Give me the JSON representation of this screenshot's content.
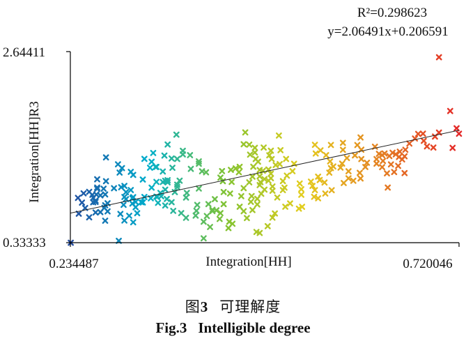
{
  "chart_data": {
    "type": "scatter",
    "title": "",
    "xlabel": "Integration[HH]",
    "ylabel": "Integration[HH]R3",
    "xlim": [
      0.234487,
      0.720046
    ],
    "ylim": [
      0.33333,
      2.64411
    ],
    "x_tick_labels": [
      "0.234487",
      "0.720046"
    ],
    "y_tick_labels": [
      "2.64411",
      "0.33333"
    ],
    "marker": "x",
    "color_scale": "x-value gradient (blue → cyan → green → yellow → orange → red)",
    "trendline": {
      "slope": 2.06491,
      "intercept": 0.206591,
      "r_squared": 0.298623,
      "equation_label": "y=2.06491x+0.206591",
      "r2_label": "R²=0.298623"
    },
    "points": [
      [
        0.235,
        0.333
      ],
      [
        0.245,
        0.684
      ],
      [
        0.266,
        0.699
      ],
      [
        0.266,
        0.842
      ],
      [
        0.267,
        0.916
      ],
      [
        0.268,
        1.1
      ],
      [
        0.276,
        0.986
      ],
      [
        0.277,
        0.755
      ],
      [
        0.278,
        0.917
      ],
      [
        0.278,
        0.599
      ],
      [
        0.279,
        1.077
      ],
      [
        0.281,
        0.81
      ],
      [
        0.289,
        0.992
      ],
      [
        0.298,
        1.004
      ],
      [
        0.296,
        1.181
      ],
      [
        0.302,
        1.02
      ],
      [
        0.302,
        0.886
      ],
      [
        0.301,
        0.791
      ],
      [
        0.304,
        0.86
      ],
      [
        0.31,
        0.97
      ],
      [
        0.312,
        0.871
      ],
      [
        0.313,
        1.153
      ],
      [
        0.325,
        0.82
      ],
      [
        0.31,
        1.19
      ],
      [
        0.316,
        0.826
      ],
      [
        0.318,
        0.69
      ],
      [
        0.313,
        0.58
      ],
      [
        0.302,
        0.601
      ],
      [
        0.308,
        0.659
      ],
      [
        0.316,
        0.762
      ],
      [
        0.304,
        0.945
      ],
      [
        0.299,
        1.235
      ],
      [
        0.294,
        1.281
      ],
      [
        0.279,
        1.365
      ],
      [
        0.272,
        0.703
      ],
      [
        0.281,
        0.712
      ],
      [
        0.272,
        0.905
      ],
      [
        0.268,
        0.985
      ],
      [
        0.251,
        0.93
      ],
      [
        0.263,
        0.822
      ],
      [
        0.263,
        0.876
      ],
      [
        0.268,
        1.0
      ],
      [
        0.249,
        0.818
      ],
      [
        0.253,
        0.753
      ],
      [
        0.258,
        0.64
      ],
      [
        0.244,
        0.875
      ],
      [
        0.258,
        0.948
      ],
      [
        0.262,
        0.912
      ],
      [
        0.266,
        0.826
      ],
      [
        0.278,
        0.786
      ],
      [
        0.295,
        0.356
      ],
      [
        0.297,
        0.681
      ],
      [
        0.312,
        0.806
      ],
      [
        0.313,
        0.884
      ],
      [
        0.323,
        0.823
      ],
      [
        0.327,
        0.886
      ],
      [
        0.335,
        0.87
      ],
      [
        0.336,
        0.999
      ],
      [
        0.342,
        1.068
      ],
      [
        0.342,
        0.89
      ],
      [
        0.325,
        1.097
      ],
      [
        0.334,
        1.24
      ],
      [
        0.35,
        1.194
      ],
      [
        0.327,
        1.347
      ],
      [
        0.338,
        1.418
      ],
      [
        0.341,
        1.249
      ],
      [
        0.362,
        1.239
      ],
      [
        0.356,
        1.089
      ],
      [
        0.35,
        1.067
      ],
      [
        0.342,
        1.25
      ],
      [
        0.336,
        1.312
      ],
      [
        0.352,
        1.387
      ],
      [
        0.361,
        1.352
      ],
      [
        0.368,
        1.346
      ],
      [
        0.356,
        1.521
      ],
      [
        0.367,
        1.64
      ],
      [
        0.375,
        1.445
      ],
      [
        0.375,
        1.401
      ],
      [
        0.384,
        1.392
      ],
      [
        0.395,
        1.317
      ],
      [
        0.395,
        1.288
      ],
      [
        0.385,
        1.226
      ],
      [
        0.399,
        1.197
      ],
      [
        0.404,
        1.184
      ],
      [
        0.395,
        0.988
      ],
      [
        0.379,
        0.879
      ],
      [
        0.38,
        0.935
      ],
      [
        0.368,
        1.035
      ],
      [
        0.371,
        1.083
      ],
      [
        0.368,
        1.005
      ],
      [
        0.365,
        0.945
      ],
      [
        0.361,
        0.823
      ],
      [
        0.355,
        0.862
      ],
      [
        0.343,
        0.887
      ],
      [
        0.347,
        0.935
      ],
      [
        0.353,
        0.975
      ],
      [
        0.356,
        1.063
      ],
      [
        0.353,
        1.082
      ],
      [
        0.348,
        0.895
      ],
      [
        0.353,
        0.783
      ],
      [
        0.344,
        0.815
      ],
      [
        0.363,
        0.718
      ],
      [
        0.373,
        0.691
      ],
      [
        0.379,
        0.634
      ],
      [
        0.391,
        0.661
      ],
      [
        0.392,
        0.719
      ],
      [
        0.393,
        0.79
      ],
      [
        0.407,
        0.8
      ],
      [
        0.412,
        0.731
      ],
      [
        0.415,
        0.86
      ],
      [
        0.426,
        0.946
      ],
      [
        0.425,
        1.077
      ],
      [
        0.422,
        1.12
      ],
      [
        0.424,
        1.199
      ],
      [
        0.435,
        1.214
      ],
      [
        0.441,
        1.232
      ],
      [
        0.446,
        1.251
      ],
      [
        0.445,
        1.185
      ],
      [
        0.436,
        1.068
      ],
      [
        0.434,
        0.928
      ],
      [
        0.426,
        0.8
      ],
      [
        0.417,
        0.725
      ],
      [
        0.422,
        0.691
      ],
      [
        0.433,
        0.587
      ],
      [
        0.437,
        0.562
      ],
      [
        0.432,
        0.51
      ],
      [
        0.421,
        0.62
      ],
      [
        0.409,
        0.523
      ],
      [
        0.401,
        0.386
      ],
      [
        0.401,
        0.587
      ],
      [
        0.405,
        0.656
      ],
      [
        0.412,
        0.715
      ],
      [
        0.451,
        0.714
      ],
      [
        0.446,
        0.768
      ],
      [
        0.448,
        0.896
      ],
      [
        0.451,
        0.993
      ],
      [
        0.458,
        1.063
      ],
      [
        0.462,
        1.132
      ],
      [
        0.471,
        1.136
      ],
      [
        0.475,
        1.203
      ],
      [
        0.477,
        1.102
      ],
      [
        0.471,
        1.03
      ],
      [
        0.472,
        1.065
      ],
      [
        0.485,
        1.113
      ],
      [
        0.485,
        1.168
      ],
      [
        0.471,
        1.212
      ],
      [
        0.463,
        1.252
      ],
      [
        0.469,
        1.313
      ],
      [
        0.482,
        1.218
      ],
      [
        0.491,
        1.272
      ],
      [
        0.486,
        1.345
      ],
      [
        0.466,
        1.345
      ],
      [
        0.459,
        1.398
      ],
      [
        0.465,
        1.481
      ],
      [
        0.476,
        1.484
      ],
      [
        0.485,
        1.446
      ],
      [
        0.483,
        1.39
      ],
      [
        0.465,
        1.424
      ],
      [
        0.458,
        1.519
      ],
      [
        0.451,
        1.524
      ],
      [
        0.453,
        1.667
      ],
      [
        0.495,
        1.629
      ],
      [
        0.497,
        1.452
      ],
      [
        0.504,
        1.346
      ],
      [
        0.496,
        1.284
      ],
      [
        0.514,
        1.288
      ],
      [
        0.512,
        1.198
      ],
      [
        0.505,
        1.144
      ],
      [
        0.5,
        1.078
      ],
      [
        0.502,
        0.999
      ],
      [
        0.5,
        0.969
      ],
      [
        0.493,
        0.88
      ],
      [
        0.487,
        0.961
      ],
      [
        0.487,
        1.013
      ],
      [
        0.482,
        1.083
      ],
      [
        0.477,
        0.975
      ],
      [
        0.473,
        0.925
      ],
      [
        0.468,
        0.864
      ],
      [
        0.461,
        0.897
      ],
      [
        0.46,
        0.827
      ],
      [
        0.468,
        0.796
      ],
      [
        0.462,
        0.728
      ],
      [
        0.455,
        0.631
      ],
      [
        0.467,
        0.463
      ],
      [
        0.471,
        0.451
      ],
      [
        0.481,
        0.533
      ],
      [
        0.487,
        0.636
      ],
      [
        0.49,
        0.687
      ],
      [
        0.503,
        0.768
      ],
      [
        0.509,
        0.808
      ],
      [
        0.52,
        0.745
      ],
      [
        0.524,
        0.767
      ],
      [
        0.523,
        0.913
      ],
      [
        0.523,
        0.98
      ],
      [
        0.521,
        1.049
      ],
      [
        0.535,
        1.072
      ],
      [
        0.537,
        1.02
      ],
      [
        0.54,
        0.969
      ],
      [
        0.539,
        0.888
      ],
      [
        0.544,
        0.87
      ],
      [
        0.553,
        0.928
      ],
      [
        0.561,
        0.968
      ],
      [
        0.552,
        1.061
      ],
      [
        0.546,
        1.091
      ],
      [
        0.544,
        1.132
      ],
      [
        0.558,
        1.18
      ],
      [
        0.56,
        1.235
      ],
      [
        0.563,
        1.255
      ],
      [
        0.559,
        1.317
      ],
      [
        0.554,
        1.392
      ],
      [
        0.547,
        1.45
      ],
      [
        0.54,
        1.517
      ],
      [
        0.541,
        1.412
      ],
      [
        0.56,
        1.515
      ],
      [
        0.575,
        1.541
      ],
      [
        0.575,
        1.456
      ],
      [
        0.58,
        1.357
      ],
      [
        0.574,
        1.29
      ],
      [
        0.572,
        1.241
      ],
      [
        0.582,
        1.197
      ],
      [
        0.582,
        1.112
      ],
      [
        0.576,
        1.055
      ],
      [
        0.588,
        1.082
      ],
      [
        0.597,
        1.11
      ],
      [
        0.596,
        1.178
      ],
      [
        0.603,
        1.249
      ],
      [
        0.605,
        1.3
      ],
      [
        0.598,
        1.345
      ],
      [
        0.59,
        1.389
      ],
      [
        0.598,
        1.458
      ],
      [
        0.593,
        1.514
      ],
      [
        0.597,
        1.606
      ],
      [
        0.615,
        1.494
      ],
      [
        0.62,
        1.408
      ],
      [
        0.617,
        1.344
      ],
      [
        0.624,
        1.392
      ],
      [
        0.627,
        1.412
      ],
      [
        0.633,
        1.381
      ],
      [
        0.637,
        1.421
      ],
      [
        0.641,
        1.402
      ],
      [
        0.646,
        1.434
      ],
      [
        0.645,
        1.37
      ],
      [
        0.635,
        1.28
      ],
      [
        0.625,
        1.322
      ],
      [
        0.617,
        1.289
      ],
      [
        0.624,
        1.247
      ],
      [
        0.63,
        1.172
      ],
      [
        0.639,
        1.188
      ],
      [
        0.644,
        1.262
      ],
      [
        0.649,
        1.34
      ],
      [
        0.652,
        1.378
      ],
      [
        0.653,
        1.457
      ],
      [
        0.658,
        1.532
      ],
      [
        0.665,
        1.593
      ],
      [
        0.669,
        1.649
      ],
      [
        0.675,
        1.652
      ],
      [
        0.676,
        1.565
      ],
      [
        0.68,
        1.498
      ],
      [
        0.688,
        1.484
      ],
      [
        0.69,
        1.617
      ],
      [
        0.695,
        1.665
      ],
      [
        0.717,
        1.717
      ],
      [
        0.72,
        1.651
      ],
      [
        0.712,
        1.48
      ],
      [
        0.709,
        1.926
      ],
      [
        0.695,
        2.576
      ],
      [
        0.631,
        1.0
      ],
      [
        0.652,
        1.175
      ]
    ]
  },
  "caption": {
    "cn_prefix": "图",
    "cn_number": "3",
    "cn_title": "可理解度",
    "en_prefix": "Fig.3",
    "en_title": "Intelligible degree"
  }
}
